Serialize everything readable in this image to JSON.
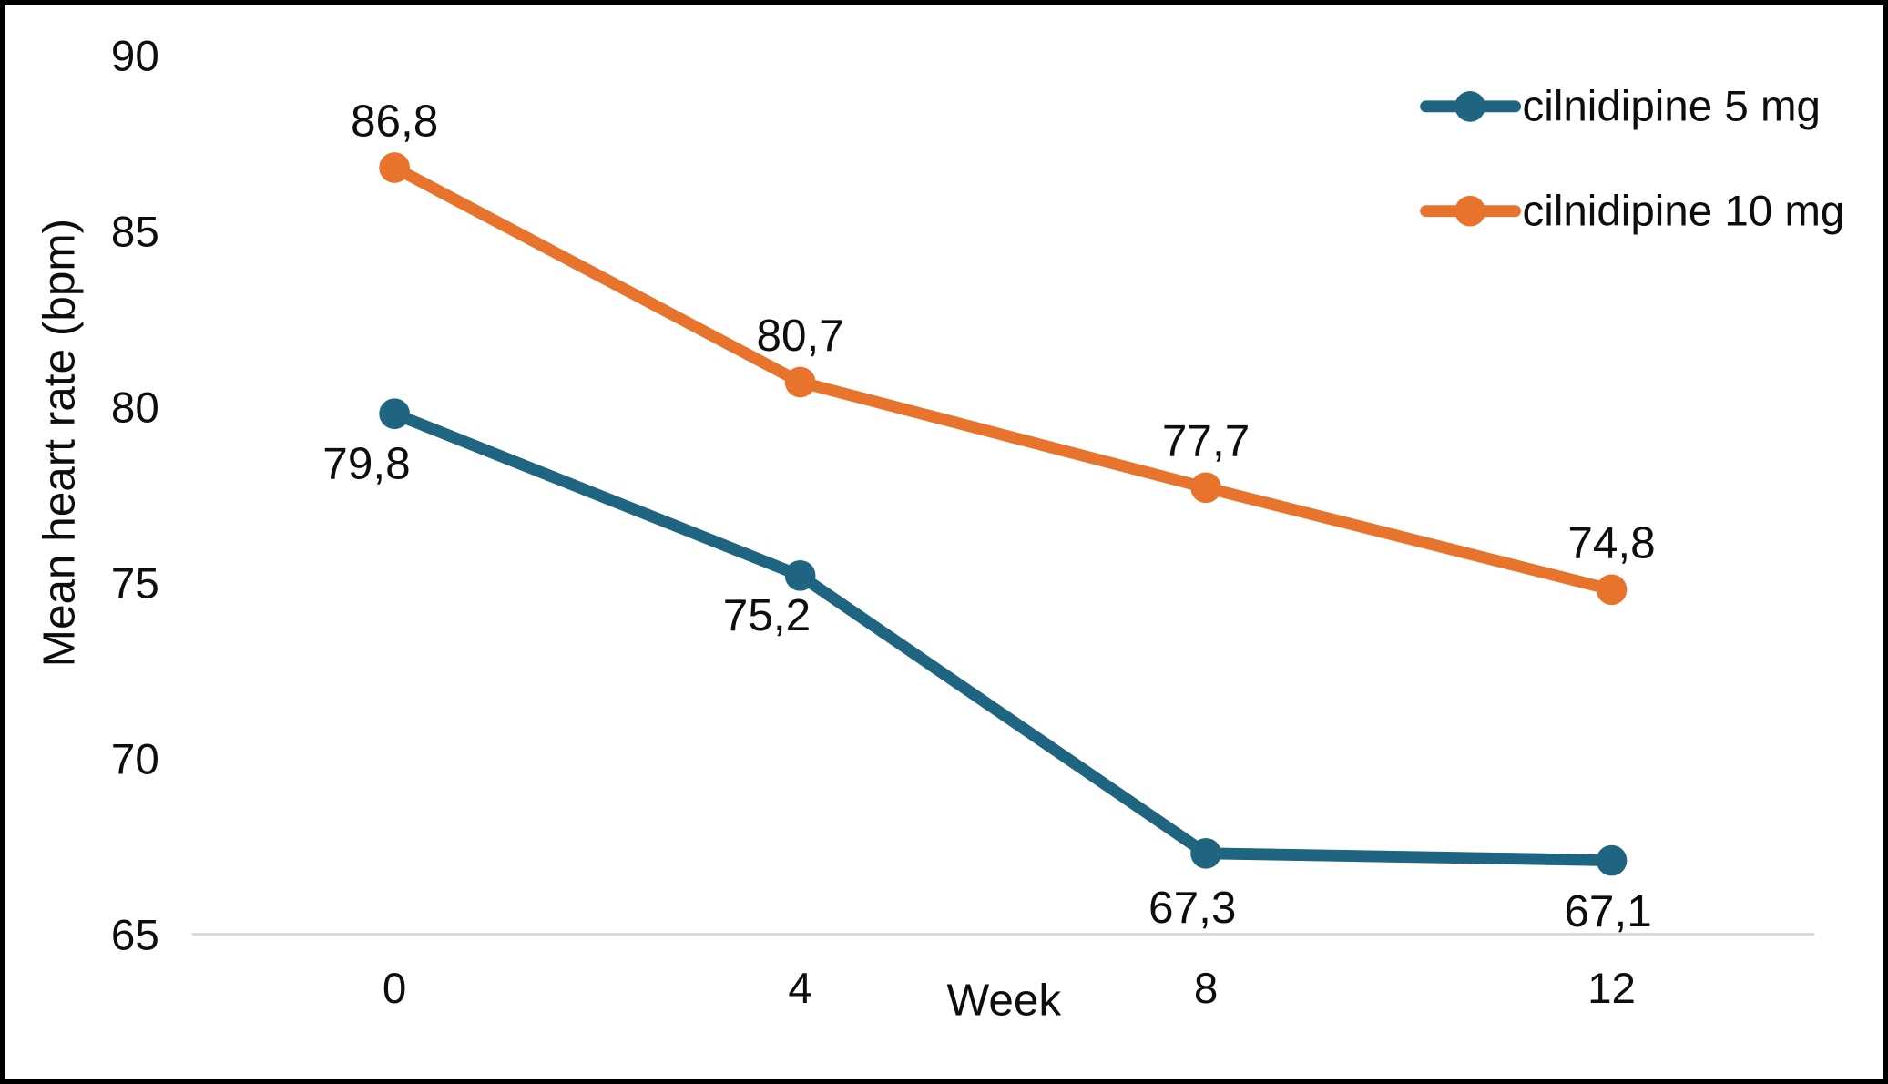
{
  "chart_data": {
    "type": "line",
    "title": "",
    "xlabel": "Week",
    "ylabel": "Mean heart rate (bpm)",
    "x_categories": [
      "0",
      "4",
      "8",
      "12"
    ],
    "yticks": [
      90,
      85,
      80,
      75,
      70,
      65
    ],
    "ylim": [
      65,
      90
    ],
    "grid": "single horizontal gridline at y=65 only",
    "decimal_separator": ",",
    "series": [
      {
        "name": "cilnidipine 5 mg",
        "color": "#1F6480",
        "values": [
          79.8,
          75.2,
          67.3,
          67.1
        ],
        "labels": [
          "79,8",
          "75,2",
          "67,3",
          "67,1"
        ],
        "label_position": "below",
        "label_offsets": [
          [
            -31,
            55
          ],
          [
            -37,
            44
          ],
          [
            -15,
            60
          ],
          [
            -4,
            56
          ]
        ]
      },
      {
        "name": "cilnidipine 10 mg",
        "color": "#E8732C",
        "values": [
          86.8,
          80.7,
          77.7,
          74.8
        ],
        "labels": [
          "86,8",
          "80,7",
          "77,7",
          "74,8"
        ],
        "label_position": "above",
        "label_offsets": [
          [
            0,
            -52
          ],
          [
            0,
            -52
          ],
          [
            0,
            -52
          ],
          [
            0,
            -52
          ]
        ]
      }
    ],
    "legend": {
      "position": "top-right",
      "items": [
        "cilnidipine 5 mg",
        "cilnidipine 10 mg"
      ]
    }
  },
  "colors": {
    "grid": "#D9D9D9",
    "text": "#0D0D0D",
    "background": "#FFFFFF",
    "frame_border": "#000000"
  }
}
